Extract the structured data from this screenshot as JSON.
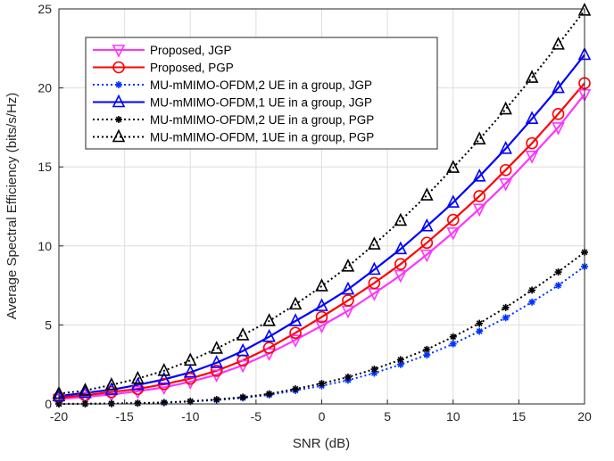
{
  "chart_data": {
    "type": "line",
    "xlabel": "SNR (dB)",
    "ylabel": "Average Spectral Efficiency (bits/s/Hz)",
    "xlim": [
      -20,
      20
    ],
    "ylim": [
      0,
      25
    ],
    "xticks": [
      -20,
      -15,
      -10,
      -5,
      0,
      5,
      10,
      15,
      20
    ],
    "yticks": [
      0,
      5,
      10,
      15,
      20,
      25
    ],
    "grid": true,
    "legend_position": "top-left",
    "x": [
      -20,
      -18,
      -16,
      -14,
      -12,
      -10,
      -8,
      -6,
      -4,
      -2,
      0,
      2,
      4,
      6,
      8,
      10,
      12,
      14,
      16,
      18,
      20
    ],
    "series": [
      {
        "name": "Proposed, JGP",
        "color": "#ff33ff",
        "line": "solid",
        "marker": "triangle-down",
        "values": [
          0.3,
          0.45,
          0.6,
          0.8,
          1.05,
          1.4,
          1.85,
          2.45,
          3.2,
          4.05,
          4.95,
          5.9,
          7.0,
          8.15,
          9.45,
          10.85,
          12.35,
          13.95,
          15.7,
          17.5,
          19.6
        ]
      },
      {
        "name": "Proposed, PGP",
        "color": "#ff0000",
        "line": "solid",
        "marker": "circle",
        "values": [
          0.4,
          0.55,
          0.75,
          0.95,
          1.25,
          1.6,
          2.1,
          2.75,
          3.55,
          4.5,
          5.5,
          6.55,
          7.65,
          8.85,
          10.2,
          11.65,
          13.15,
          14.8,
          16.5,
          18.35,
          20.3
        ]
      },
      {
        "name": "MU-mMIMO-OFDM,2 UE in a group, JGP",
        "color": "#0033ff",
        "line": "dotted",
        "marker": "asterisk",
        "values": [
          0.0,
          0.01,
          0.02,
          0.04,
          0.08,
          0.15,
          0.25,
          0.38,
          0.57,
          0.85,
          1.15,
          1.5,
          1.95,
          2.5,
          3.1,
          3.8,
          4.6,
          5.45,
          6.45,
          7.5,
          8.7
        ]
      },
      {
        "name": "MU-mMIMO-OFDM,1 UE in a group, JGP",
        "color": "#0000ff",
        "line": "solid",
        "marker": "triangle-up",
        "values": [
          0.5,
          0.7,
          0.9,
          1.2,
          1.55,
          2.0,
          2.6,
          3.35,
          4.25,
          5.25,
          6.2,
          7.25,
          8.5,
          9.8,
          11.25,
          12.75,
          14.4,
          16.15,
          18.05,
          20.0,
          22.1
        ]
      },
      {
        "name": "MU-mMIMO-OFDM,2 UE in a group, PGP",
        "color": "#000000",
        "line": "dotted",
        "marker": "asterisk",
        "values": [
          0.0,
          0.01,
          0.02,
          0.05,
          0.09,
          0.17,
          0.28,
          0.43,
          0.64,
          0.95,
          1.3,
          1.7,
          2.2,
          2.8,
          3.45,
          4.25,
          5.1,
          6.1,
          7.2,
          8.35,
          9.6
        ]
      },
      {
        "name": "MU-mMIMO-OFDM, 1UE in a group, PGP",
        "color": "#000000",
        "line": "dotted",
        "marker": "triangle-up",
        "values": [
          0.65,
          0.85,
          1.2,
          1.6,
          2.1,
          2.75,
          3.5,
          4.35,
          5.25,
          6.3,
          7.45,
          8.7,
          10.1,
          11.6,
          13.2,
          14.95,
          16.75,
          18.65,
          20.65,
          22.75,
          24.9
        ]
      }
    ]
  }
}
